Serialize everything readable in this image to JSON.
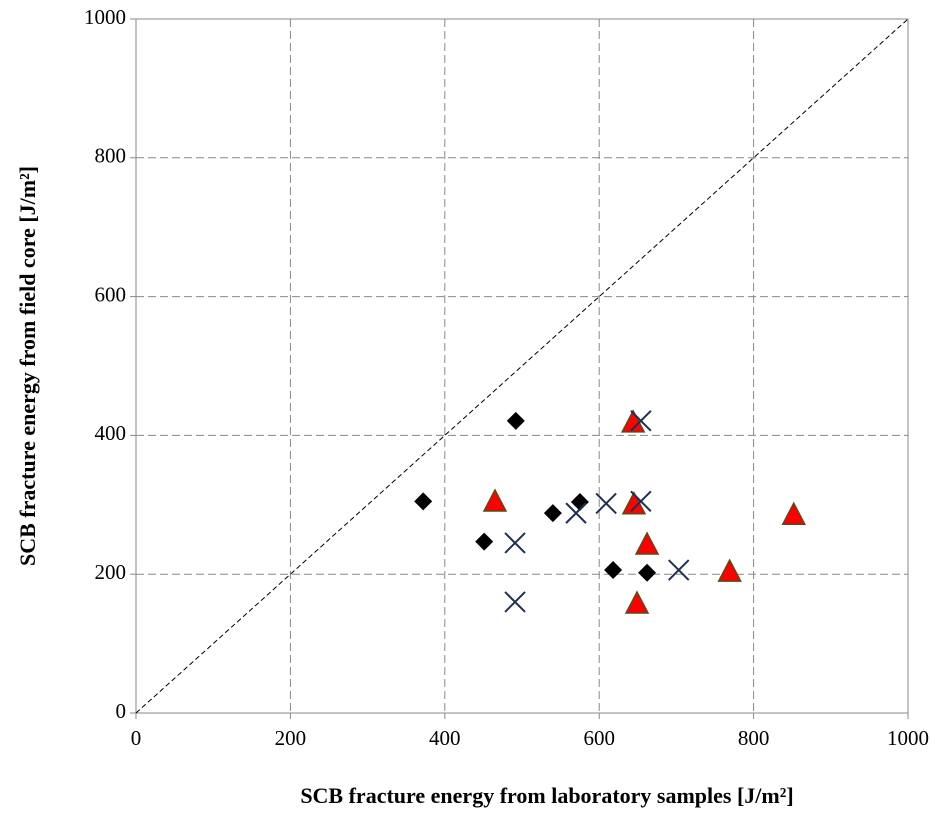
{
  "chart_data": {
    "type": "scatter",
    "xlabel": "SCB fracture energy  from laboratory samples [J/m²]",
    "ylabel": "SCB fracture energy  from field core [J/m²]",
    "xlim": [
      0,
      1000
    ],
    "ylim": [
      0,
      1000
    ],
    "xticks": [
      0,
      200,
      400,
      600,
      800,
      1000
    ],
    "yticks": [
      0,
      200,
      400,
      600,
      800,
      1000
    ],
    "grid": true,
    "series": [
      {
        "marker": "diamond",
        "color": "#000000",
        "x": [
          372,
          451,
          492,
          540,
          575,
          618,
          662
        ],
        "values": [
          305,
          247,
          421,
          288,
          304,
          206,
          202
        ]
      },
      {
        "marker": "triangle",
        "color": "#ff0000",
        "x": [
          465,
          644,
          645,
          662,
          649,
          769,
          852
        ],
        "values": [
          304,
          418,
          300,
          242,
          157,
          203,
          285
        ]
      },
      {
        "marker": "cross",
        "color": "#1f3050",
        "x": [
          491,
          491,
          570,
          609,
          654,
          654,
          703
        ],
        "values": [
          160,
          245,
          288,
          302,
          421,
          305,
          206
        ]
      }
    ]
  }
}
